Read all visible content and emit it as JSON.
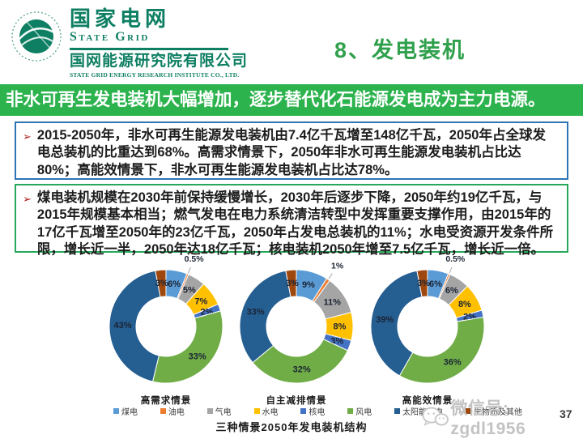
{
  "header": {
    "logo": {
      "org_cn": "国家电网",
      "org_en": "State Grid",
      "institute_cn": "国网能源研究院有限公司",
      "institute_en": "STATE GRID ENERGY RESEARCH INSTITUTE CO., LTD."
    },
    "title": "8、发电装机"
  },
  "banner": {
    "text": "非水可再生发电装机大幅增加，逐步替代化石能源发电成为主力电源。"
  },
  "bullets": [
    {
      "marker": "➢",
      "text": "2015-2050年，非水可再生能源发电装机由7.4亿千瓦增至148亿千瓦，2050年占全球发电总装机的比重达到68%。高需求情景下，2050年非水可再生能源发电装机占比达80%；高能效情景下，非水可再生能源发电装机占比达78%。"
    },
    {
      "marker": "➢",
      "text": "煤电装机规模在2030年前保持缓慢增长，2030年后逐步下降，2050年约19亿千瓦，与2015年规模基本相当；燃气发电在电力系统清洁转型中发挥重要支撑作用，由2015年的17亿千瓦增至2050年的23亿千瓦，2050年占发电总装机的11%；水电受资源开发条件所限，增长近一半，2050年达18亿千瓦；核电装机2050年增至7.5亿千瓦，增长近一倍。"
    }
  ],
  "chart_data": {
    "type": "pie",
    "subtype": "donut",
    "title": "三种情景2050年发电装机结构",
    "unit": "%",
    "categories": [
      "煤电",
      "油电",
      "气电",
      "水电",
      "核电",
      "风电",
      "太阳能发电",
      "生物质及其他"
    ],
    "slugs": [
      "coal",
      "oil",
      "gas",
      "hydro",
      "nuclear",
      "wind",
      "solar",
      "biomass"
    ],
    "colors": [
      "#5B9BD5",
      "#ED7D31",
      "#A5A5A5",
      "#FFC000",
      "#4472C4",
      "#70AD47",
      "#255E91",
      "#9E480E"
    ],
    "series": [
      {
        "name": "高需求情景",
        "values": [
          6,
          0.5,
          5,
          7,
          2,
          33,
          43,
          3
        ]
      },
      {
        "name": "自主减排情景",
        "values": [
          9,
          1,
          11,
          8,
          3,
          32,
          33,
          3
        ]
      },
      {
        "name": "高能效情景",
        "values": [
          6,
          0.5,
          6,
          8,
          2,
          36,
          39,
          3
        ]
      }
    ],
    "legend_position": "bottom",
    "labels": "percent-on-slice"
  },
  "theme": {
    "brand_green": "#0E7F63",
    "title_green": "#2FA04C",
    "banner_green": "#2CB34D",
    "callout_blue": "#2E74B5",
    "callout_green": "#27A85B",
    "bullet_red": "#B02020"
  },
  "footer": {
    "watermark": "微信号: zgdl1956",
    "page_number": "37"
  }
}
